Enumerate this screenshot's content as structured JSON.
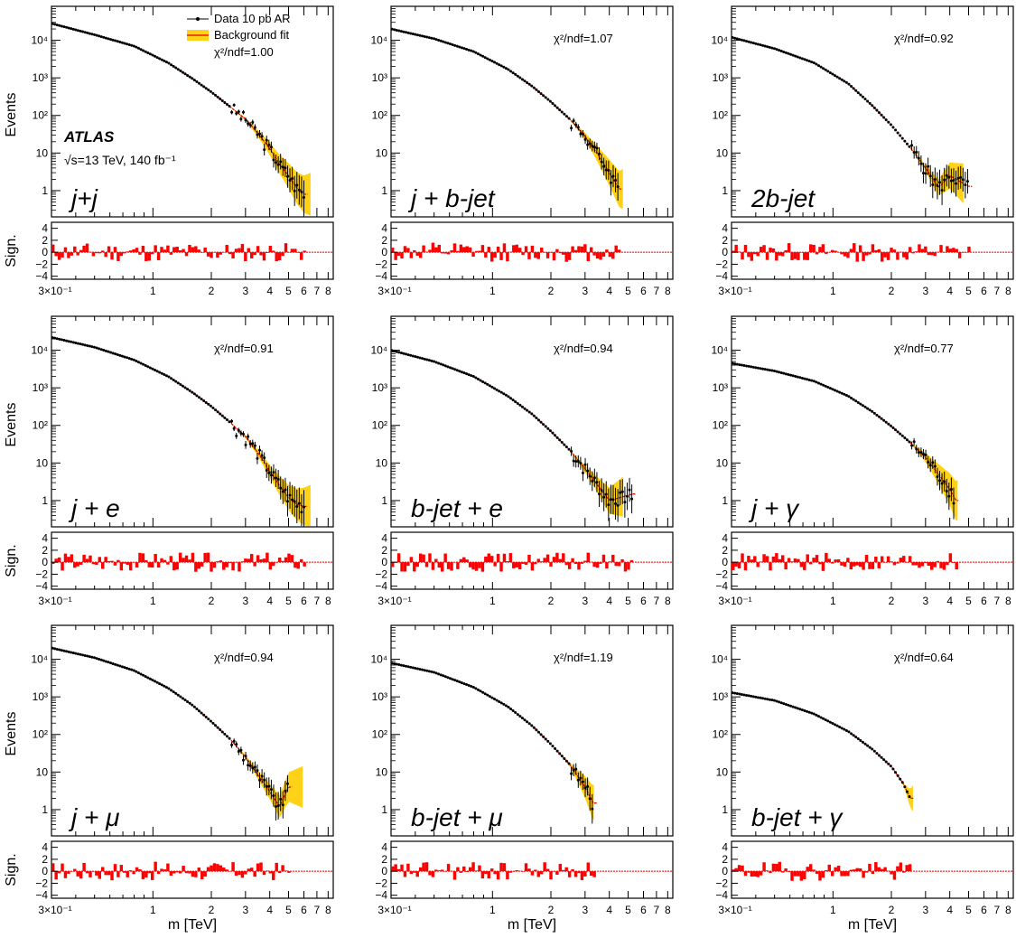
{
  "figure": {
    "atlas_label": "ATLAS",
    "energy_lumi": "√s=13 TeV,  140 fb⁻¹",
    "legend": {
      "data": "Data 10 pb AR",
      "background": "Background fit"
    },
    "colors": {
      "band": "#ffd21a",
      "fit": "#e00000",
      "significance": "#ff0000",
      "data": "#000000"
    }
  },
  "chart_data": [
    {
      "type": "scatter",
      "channel": "j+j",
      "chi2ndf": "χ²/ndf=1.00",
      "xlabel": "",
      "ylabel": "Events",
      "ratio_ylabel": "Sign.",
      "xlim": [
        0.3,
        8.5
      ],
      "ylim": [
        0.2,
        80000
      ],
      "ratio_ylim": [
        -4.5,
        5
      ],
      "x_ticklabels": [
        "3×10⁻¹",
        "1",
        "2",
        "3",
        "4",
        "5",
        "6",
        "7",
        "8"
      ],
      "y_ticklabels": [
        "10⁴",
        "10³",
        "10²",
        "10",
        "1"
      ],
      "ratio_ticklabels": [
        "4",
        "2",
        "0",
        "−2",
        "−4"
      ],
      "data_points": [
        [
          0.3,
          28000
        ],
        [
          0.5,
          14000
        ],
        [
          0.8,
          7000
        ],
        [
          1.2,
          2500
        ],
        [
          1.6,
          950
        ],
        [
          2.0,
          420
        ],
        [
          2.5,
          170
        ],
        [
          3.0,
          80
        ],
        [
          3.5,
          32
        ],
        [
          4.0,
          13
        ],
        [
          4.5,
          5
        ],
        [
          5.0,
          2.5
        ],
        [
          5.5,
          1.2
        ],
        [
          6.0,
          0.8
        ]
      ],
      "band_end": 6.5
    },
    {
      "type": "scatter",
      "channel": "j + b-jet",
      "chi2ndf": "χ²/ndf=1.07",
      "xlabel": "",
      "ylabel": "",
      "ratio_ylabel": "",
      "xlim": [
        0.3,
        8.5
      ],
      "ylim": [
        0.2,
        80000
      ],
      "ratio_ylim": [
        -4.5,
        5
      ],
      "x_ticklabels": [
        "3×10⁻¹",
        "1",
        "2",
        "3",
        "4",
        "5",
        "6",
        "7",
        "8"
      ],
      "y_ticklabels": [
        "10⁴",
        "10³",
        "10²",
        "10",
        "1"
      ],
      "ratio_ticklabels": [
        "4",
        "2",
        "0",
        "−2",
        "−4"
      ],
      "data_points": [
        [
          0.3,
          20000
        ],
        [
          0.5,
          11000
        ],
        [
          0.8,
          5000
        ],
        [
          1.2,
          1700
        ],
        [
          1.6,
          600
        ],
        [
          2.0,
          230
        ],
        [
          2.5,
          80
        ],
        [
          3.0,
          28
        ],
        [
          3.5,
          9
        ],
        [
          4.0,
          3
        ],
        [
          4.5,
          1.1
        ]
      ],
      "band_end": 4.8
    },
    {
      "type": "scatter",
      "channel": "2b-jet",
      "chi2ndf": "χ²/ndf=0.92",
      "xlabel": "",
      "ylabel": "",
      "ratio_ylabel": "",
      "xlim": [
        0.3,
        8.5
      ],
      "ylim": [
        0.2,
        80000
      ],
      "ratio_ylim": [
        -4.5,
        5
      ],
      "x_ticklabels": [
        "3×10⁻¹",
        "1",
        "2",
        "3",
        "4",
        "5",
        "6",
        "7",
        "8"
      ],
      "y_ticklabels": [
        "10⁴",
        "10³",
        "10²",
        "10",
        "1"
      ],
      "ratio_ticklabels": [
        "4",
        "2",
        "0",
        "−2",
        "−4"
      ],
      "data_points": [
        [
          0.3,
          12000
        ],
        [
          0.5,
          6000
        ],
        [
          0.8,
          2500
        ],
        [
          1.2,
          700
        ],
        [
          1.6,
          180
        ],
        [
          2.0,
          55
        ],
        [
          2.5,
          14
        ],
        [
          3.0,
          4
        ],
        [
          3.5,
          1.2
        ],
        [
          4.0,
          2.5
        ],
        [
          5.0,
          1.3
        ]
      ],
      "band_end": 4.8
    },
    {
      "type": "scatter",
      "channel": "j + e",
      "chi2ndf": "χ²/ndf=0.91",
      "xlabel": "",
      "ylabel": "Events",
      "ratio_ylabel": "Sign.",
      "xlim": [
        0.3,
        8.5
      ],
      "ylim": [
        0.2,
        80000
      ],
      "ratio_ylim": [
        -4.5,
        5
      ],
      "x_ticklabels": [
        "3×10⁻¹",
        "1",
        "2",
        "3",
        "4",
        "5",
        "6",
        "7",
        "8"
      ],
      "y_ticklabels": [
        "10⁴",
        "10³",
        "10²",
        "10",
        "1"
      ],
      "ratio_ticklabels": [
        "4",
        "2",
        "0",
        "−2",
        "−4"
      ],
      "data_points": [
        [
          0.3,
          22000
        ],
        [
          0.5,
          12000
        ],
        [
          0.8,
          5500
        ],
        [
          1.2,
          2000
        ],
        [
          1.6,
          750
        ],
        [
          2.0,
          320
        ],
        [
          2.5,
          120
        ],
        [
          3.0,
          50
        ],
        [
          3.5,
          18
        ],
        [
          4.0,
          6
        ],
        [
          4.5,
          2.5
        ],
        [
          5.0,
          1.2
        ],
        [
          5.5,
          0.8
        ],
        [
          6.0,
          0.7
        ]
      ],
      "band_end": 6.5
    },
    {
      "type": "scatter",
      "channel": "b-jet + e",
      "chi2ndf": "χ²/ndf=0.94",
      "xlabel": "",
      "ylabel": "",
      "ratio_ylabel": "",
      "xlim": [
        0.3,
        8.5
      ],
      "ylim": [
        0.2,
        80000
      ],
      "ratio_ylim": [
        -4.5,
        5
      ],
      "x_ticklabels": [
        "3×10⁻¹",
        "1",
        "2",
        "3",
        "4",
        "5",
        "6",
        "7",
        "8"
      ],
      "y_ticklabels": [
        "10⁴",
        "10³",
        "10²",
        "10",
        "1"
      ],
      "ratio_ticklabels": [
        "4",
        "2",
        "0",
        "−2",
        "−4"
      ],
      "data_points": [
        [
          0.3,
          10000
        ],
        [
          0.5,
          5000
        ],
        [
          0.8,
          2000
        ],
        [
          1.2,
          600
        ],
        [
          1.6,
          200
        ],
        [
          2.0,
          70
        ],
        [
          2.5,
          22
        ],
        [
          3.0,
          7
        ],
        [
          3.5,
          2.5
        ],
        [
          4.0,
          1
        ],
        [
          5.3,
          1.5
        ]
      ],
      "band_end": 4.8
    },
    {
      "type": "scatter",
      "channel": "j + γ",
      "chi2ndf": "χ²/ndf=0.77",
      "xlabel": "",
      "ylabel": "",
      "ratio_ylabel": "",
      "xlim": [
        0.3,
        8.5
      ],
      "ylim": [
        0.2,
        80000
      ],
      "ratio_ylim": [
        -4.5,
        5
      ],
      "x_ticklabels": [
        "3×10⁻¹",
        "1",
        "2",
        "3",
        "4",
        "5",
        "6",
        "7",
        "8"
      ],
      "y_ticklabels": [
        "10⁴",
        "10³",
        "10²",
        "10",
        "1"
      ],
      "ratio_ticklabels": [
        "4",
        "2",
        "0",
        "−2",
        "−4"
      ],
      "data_points": [
        [
          0.3,
          4500
        ],
        [
          0.5,
          2800
        ],
        [
          0.8,
          1500
        ],
        [
          1.2,
          600
        ],
        [
          1.6,
          230
        ],
        [
          2.0,
          95
        ],
        [
          2.5,
          35
        ],
        [
          3.0,
          14
        ],
        [
          3.5,
          5
        ],
        [
          4.0,
          2
        ],
        [
          4.3,
          1
        ]
      ],
      "band_end": 4.4
    },
    {
      "type": "scatter",
      "channel": "j + μ",
      "chi2ndf": "χ²/ndf=0.94",
      "xlabel": "m [TeV]",
      "ylabel": "Events",
      "ratio_ylabel": "Sign.",
      "xlim": [
        0.3,
        8.5
      ],
      "ylim": [
        0.2,
        80000
      ],
      "ratio_ylim": [
        -4.5,
        5
      ],
      "x_ticklabels": [
        "3×10⁻¹",
        "1",
        "2",
        "3",
        "4",
        "5",
        "6",
        "7",
        "8"
      ],
      "y_ticklabels": [
        "10⁴",
        "10³",
        "10²",
        "10",
        "1"
      ],
      "ratio_ticklabels": [
        "4",
        "2",
        "0",
        "−2",
        "−4"
      ],
      "data_points": [
        [
          0.3,
          20000
        ],
        [
          0.5,
          11000
        ],
        [
          0.8,
          5000
        ],
        [
          1.2,
          1700
        ],
        [
          1.6,
          600
        ],
        [
          2.0,
          220
        ],
        [
          2.5,
          75
        ],
        [
          3.0,
          25
        ],
        [
          3.5,
          8
        ],
        [
          4.0,
          3
        ],
        [
          4.5,
          1.2
        ],
        [
          5.0,
          4
        ]
      ],
      "band_end": 6.0
    },
    {
      "type": "scatter",
      "channel": "b-jet + μ",
      "chi2ndf": "χ²/ndf=1.19",
      "xlabel": "m [TeV]",
      "ylabel": "",
      "ratio_ylabel": "",
      "xlim": [
        0.3,
        8.5
      ],
      "ylim": [
        0.2,
        80000
      ],
      "ratio_ylim": [
        -4.5,
        5
      ],
      "x_ticklabels": [
        "3×10⁻¹",
        "1",
        "2",
        "3",
        "4",
        "5",
        "6",
        "7",
        "8"
      ],
      "y_ticklabels": [
        "10⁴",
        "10³",
        "10²",
        "10",
        "1"
      ],
      "ratio_ticklabels": [
        "4",
        "2",
        "0",
        "−2",
        "−4"
      ],
      "data_points": [
        [
          0.3,
          8000
        ],
        [
          0.5,
          4500
        ],
        [
          0.8,
          1800
        ],
        [
          1.2,
          550
        ],
        [
          1.6,
          170
        ],
        [
          2.0,
          55
        ],
        [
          2.5,
          16
        ],
        [
          3.0,
          4
        ],
        [
          3.3,
          1.5
        ]
      ],
      "band_end": 3.4
    },
    {
      "type": "scatter",
      "channel": "b-jet + γ",
      "chi2ndf": "χ²/ndf=0.64",
      "xlabel": "m [TeV]",
      "ylabel": "",
      "ratio_ylabel": "",
      "xlim": [
        0.3,
        8.5
      ],
      "ylim": [
        0.2,
        80000
      ],
      "ratio_ylim": [
        -4.5,
        5
      ],
      "x_ticklabels": [
        "3×10⁻¹",
        "1",
        "2",
        "3",
        "4",
        "5",
        "6",
        "7",
        "8"
      ],
      "y_ticklabels": [
        "10⁴",
        "10³",
        "10²",
        "10",
        "1"
      ],
      "ratio_ticklabels": [
        "4",
        "2",
        "0",
        "−2",
        "−4"
      ],
      "data_points": [
        [
          0.3,
          1300
        ],
        [
          0.5,
          800
        ],
        [
          0.8,
          350
        ],
        [
          1.2,
          120
        ],
        [
          1.6,
          40
        ],
        [
          2.0,
          14
        ],
        [
          2.3,
          5
        ],
        [
          2.5,
          2
        ]
      ],
      "band_end": 2.6
    }
  ]
}
